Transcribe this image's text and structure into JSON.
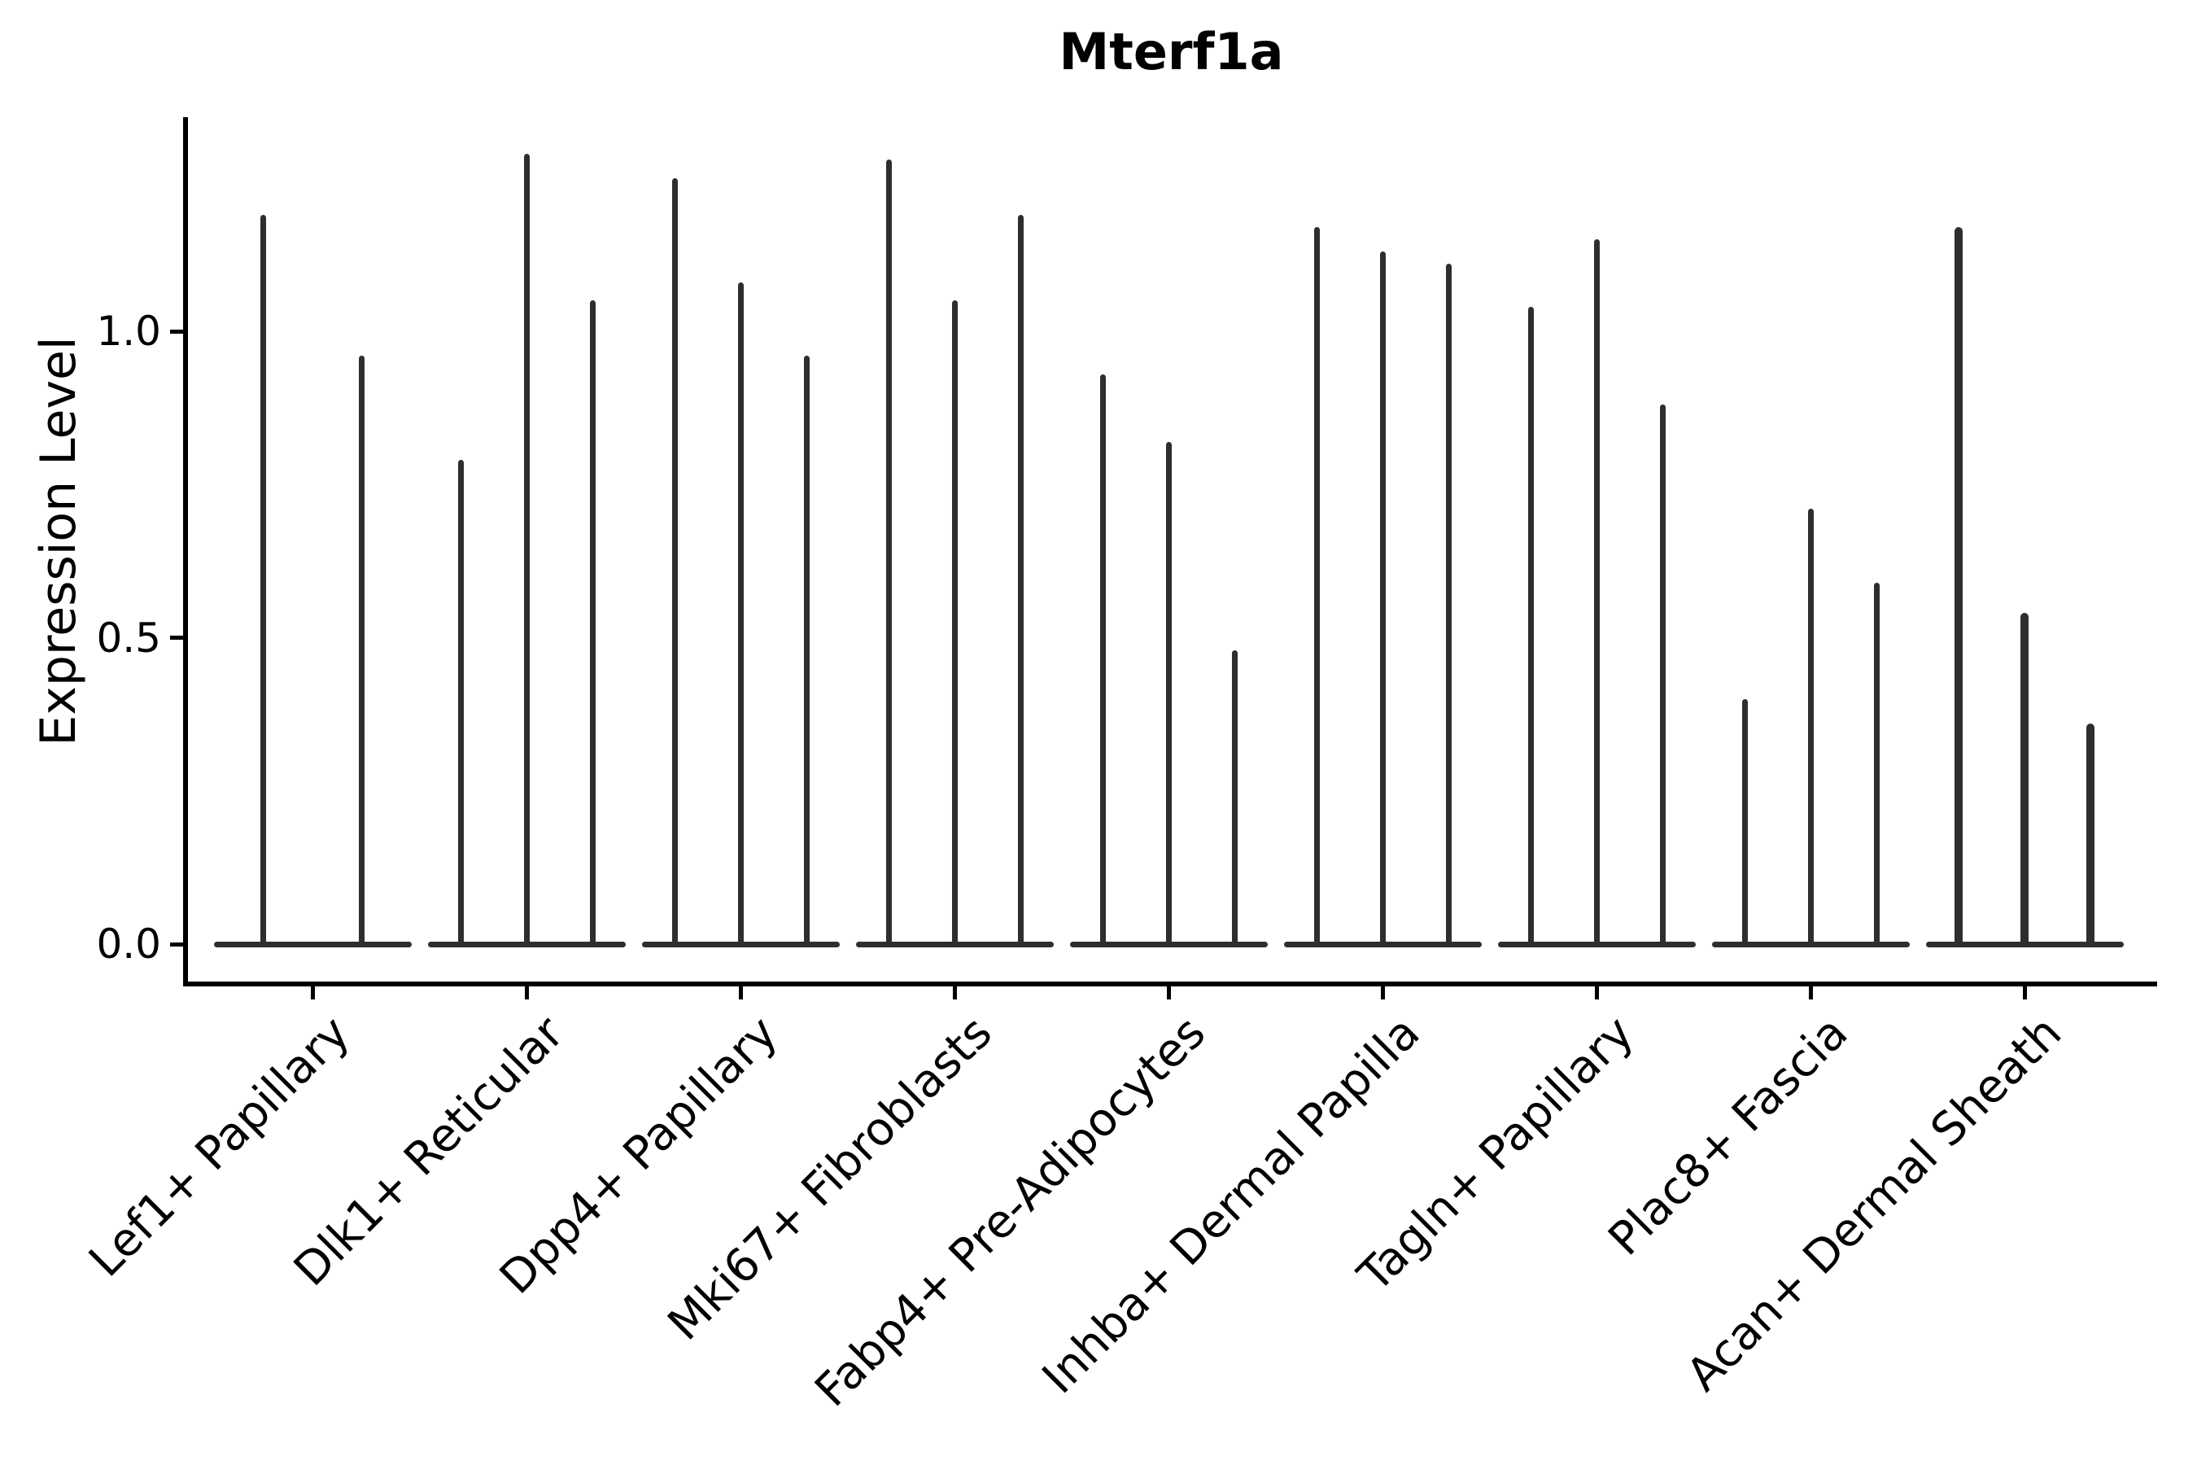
{
  "chart_data": {
    "type": "violin",
    "title": "Mterf1a",
    "ylabel": "Expression Level",
    "xlabel": "",
    "yticks": [
      0.0,
      0.5,
      1.0
    ],
    "ytick_labels": [
      "0.0",
      "0.5",
      "1.0"
    ],
    "ylim": [
      0,
      1.35
    ],
    "grid": "off",
    "legend": "none",
    "violin_color": "#2e2e2e",
    "categories": [
      "Lef1+ Papillary",
      "Dlk1+ Reticular",
      "Dpp4+ Papillary",
      "Mki67+ Fibroblasts",
      "Fabp4+ Pre-Adipocytes",
      "Inhba+ Dermal Papilla",
      "Tagln+ Papillary",
      "Plac8+ Fascia",
      "Acan+ Dermal Sheath"
    ],
    "violin_max_expression": [
      [
        1.19,
        0.96
      ],
      [
        0.79,
        1.29,
        1.05
      ],
      [
        1.25,
        1.08,
        0.96
      ],
      [
        1.28,
        1.05,
        1.19
      ],
      [
        0.93,
        0.82,
        0.48
      ],
      [
        1.17,
        1.13,
        1.11
      ],
      [
        1.04,
        1.15,
        0.88
      ],
      [
        0.4,
        0.71,
        0.59
      ],
      [
        1.17,
        0.54,
        0.36
      ]
    ],
    "note": "Each category shows narrow violins: dense mass at 0 (flat base) with a thin spike up to the max expression value."
  }
}
